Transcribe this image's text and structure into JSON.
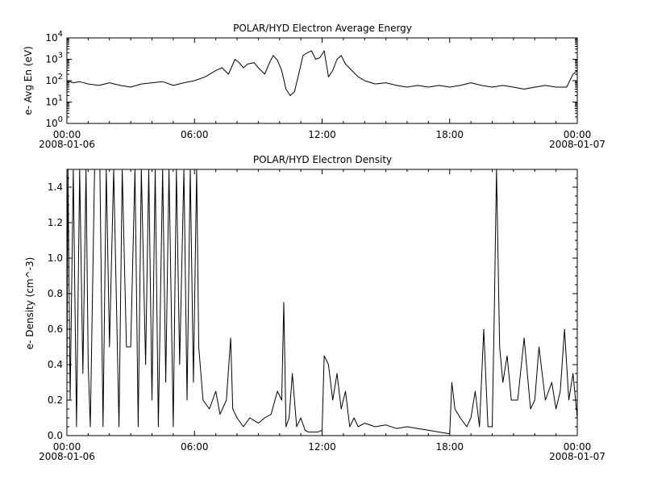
{
  "chart_data": [
    {
      "type": "line",
      "title": "POLAR/HYD  Electron Average Energy",
      "ylabel": "e- Avg En (eV)",
      "xlabel": "",
      "yscale": "log",
      "ylim": [
        1,
        10000
      ],
      "yticks": [
        {
          "value": 1,
          "label": "10^0"
        },
        {
          "value": 10,
          "label": "10^1"
        },
        {
          "value": 100,
          "label": "10^2"
        },
        {
          "value": 1000,
          "label": "10^3"
        },
        {
          "value": 10000,
          "label": "10^4"
        }
      ],
      "xlim_hours": [
        0,
        24
      ],
      "xticks": [
        {
          "hour": 0,
          "label": "00:00",
          "date": "2008-01-06"
        },
        {
          "hour": 6,
          "label": "06:00",
          "date": ""
        },
        {
          "hour": 12,
          "label": "12:00",
          "date": ""
        },
        {
          "hour": 18,
          "label": "18:00",
          "date": ""
        },
        {
          "hour": 24,
          "label": "00:00",
          "date": "2008-01-07"
        }
      ],
      "grid": false,
      "series": [
        {
          "x_hours": [
            0.0,
            0.3,
            0.6,
            1.0,
            1.5,
            2.0,
            2.5,
            3.0,
            3.5,
            4.0,
            4.5,
            5.0,
            5.5,
            6.0,
            6.5,
            7.0,
            7.3,
            7.6,
            7.9,
            8.1,
            8.3,
            8.5,
            8.8,
            9.0,
            9.3,
            9.5,
            9.7,
            9.9,
            10.1,
            10.3,
            10.5,
            10.7,
            10.9,
            11.1,
            11.3,
            11.5,
            11.7,
            11.9,
            12.1,
            12.3,
            12.5,
            12.7,
            12.9,
            13.1,
            13.4,
            13.7,
            14.0,
            14.5,
            15.0,
            15.5,
            16.0,
            16.5,
            17.0,
            17.5,
            18.0,
            18.5,
            19.0,
            19.5,
            20.0,
            20.5,
            21.0,
            21.5,
            22.0,
            22.5,
            23.0,
            23.5,
            23.8,
            24.0
          ],
          "y": [
            100,
            80,
            90,
            70,
            60,
            80,
            60,
            50,
            70,
            80,
            90,
            60,
            80,
            100,
            150,
            300,
            400,
            200,
            1000,
            700,
            400,
            600,
            700,
            400,
            200,
            600,
            1500,
            900,
            300,
            40,
            20,
            30,
            200,
            1500,
            2000,
            2500,
            1000,
            1200,
            2500,
            150,
            300,
            1000,
            1500,
            600,
            300,
            150,
            100,
            70,
            80,
            60,
            50,
            60,
            50,
            60,
            50,
            60,
            80,
            60,
            50,
            60,
            50,
            40,
            50,
            60,
            50,
            50,
            200,
            300
          ]
        }
      ]
    },
    {
      "type": "line",
      "title": "POLAR/HYD  Electron Density",
      "ylabel": "e- Density (cm^-3)",
      "xlabel": "",
      "yscale": "linear",
      "ylim": [
        0,
        1.5
      ],
      "yticks": [
        {
          "value": 0.0,
          "label": "0.0"
        },
        {
          "value": 0.2,
          "label": "0.2"
        },
        {
          "value": 0.4,
          "label": "0.4"
        },
        {
          "value": 0.6,
          "label": "0.6"
        },
        {
          "value": 0.8,
          "label": "0.8"
        },
        {
          "value": 1.0,
          "label": "1.0"
        },
        {
          "value": 1.2,
          "label": "1.2"
        },
        {
          "value": 1.4,
          "label": "1.4"
        }
      ],
      "xlim_hours": [
        0,
        24
      ],
      "xticks": [
        {
          "hour": 0,
          "label": "00:00",
          "date": "2008-01-06"
        },
        {
          "hour": 6,
          "label": "06:00",
          "date": ""
        },
        {
          "hour": 12,
          "label": "12:00",
          "date": ""
        },
        {
          "hour": 18,
          "label": "18:00",
          "date": ""
        },
        {
          "hour": 24,
          "label": "00:00",
          "date": "2008-01-07"
        }
      ],
      "grid": false,
      "series": [
        {
          "x_hours": [
            0.0,
            0.05,
            0.15,
            0.3,
            0.45,
            0.6,
            0.75,
            0.9,
            1.0,
            1.1,
            1.3,
            1.55,
            1.7,
            1.85,
            2.0,
            2.2,
            2.45,
            2.6,
            2.8,
            3.0,
            3.2,
            3.35,
            3.5,
            3.7,
            3.85,
            4.0,
            4.15,
            4.3,
            4.5,
            4.65,
            4.8,
            5.0,
            5.15,
            5.3,
            5.5,
            5.65,
            5.8,
            5.95,
            6.1,
            6.2,
            6.4,
            6.7,
            7.0,
            7.2,
            7.5,
            7.7,
            7.8,
            8.0,
            8.3,
            8.6,
            9.0,
            9.3,
            9.6,
            9.9,
            10.1,
            10.2,
            10.3,
            10.45,
            10.6,
            10.8,
            11.0,
            11.2,
            11.35,
            11.5,
            11.8,
            12.0,
            12.1,
            12.3,
            12.5,
            12.7,
            12.9,
            13.1,
            13.3,
            13.5,
            13.7,
            14.0,
            14.5,
            15.0,
            15.5,
            16.0,
            16.5,
            17.0,
            17.5,
            18.0,
            18.1,
            18.25,
            18.5,
            18.8,
            19.0,
            19.2,
            19.4,
            19.6,
            19.8,
            20.0,
            20.1,
            20.2,
            20.35,
            20.5,
            20.7,
            20.9,
            21.2,
            21.5,
            21.8,
            22.0,
            22.2,
            22.5,
            22.8,
            23.0,
            23.2,
            23.4,
            23.6,
            23.8,
            24.0
          ],
          "y": [
            0.3,
            1.5,
            0.2,
            1.5,
            0.05,
            1.5,
            0.35,
            1.5,
            0.4,
            0.05,
            1.5,
            1.5,
            0.05,
            1.5,
            0.5,
            1.5,
            0.05,
            1.5,
            0.5,
            0.5,
            1.5,
            0.05,
            1.5,
            0.4,
            1.5,
            0.2,
            1.5,
            0.05,
            1.5,
            0.3,
            1.5,
            0.05,
            1.5,
            0.4,
            1.5,
            0.2,
            1.5,
            0.3,
            1.5,
            0.5,
            0.2,
            0.15,
            0.25,
            0.12,
            0.2,
            0.55,
            0.15,
            0.1,
            0.05,
            0.1,
            0.07,
            0.1,
            0.12,
            0.25,
            0.2,
            0.75,
            0.05,
            0.1,
            0.35,
            0.05,
            0.1,
            0.03,
            0.02,
            0.02,
            0.02,
            0.03,
            0.45,
            0.4,
            0.2,
            0.35,
            0.15,
            0.25,
            0.05,
            0.1,
            0.05,
            0.07,
            0.05,
            0.06,
            0.04,
            0.05,
            0.04,
            0.03,
            0.02,
            0.01,
            0.3,
            0.15,
            0.1,
            0.05,
            0.1,
            0.25,
            0.05,
            0.6,
            0.05,
            0.05,
            0.7,
            1.5,
            0.5,
            0.3,
            0.45,
            0.2,
            0.2,
            0.55,
            0.15,
            0.2,
            0.5,
            0.2,
            0.3,
            0.15,
            0.25,
            0.6,
            0.2,
            0.35,
            0.1
          ]
        }
      ]
    }
  ]
}
